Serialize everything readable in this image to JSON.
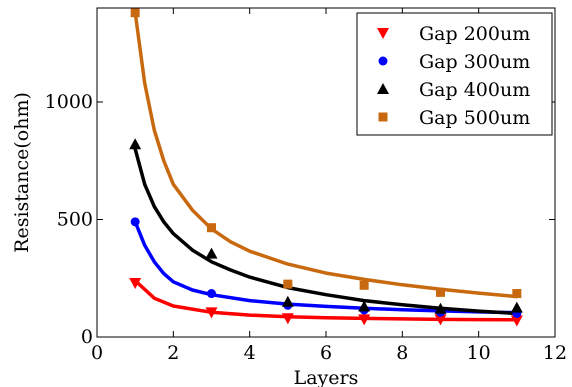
{
  "chart_data": {
    "type": "scatter",
    "title": "",
    "xlabel": "Layers",
    "ylabel": "Resistance(ohm)",
    "xlim": [
      0,
      12
    ],
    "ylim": [
      0,
      1400
    ],
    "xticks": [
      0,
      2,
      4,
      6,
      8,
      10,
      12
    ],
    "yticks": [
      0,
      500,
      1000
    ],
    "grid": false,
    "legend_position": "top-right",
    "fit_lines": true,
    "series": [
      {
        "name": "Gap 200um",
        "marker": "triangle-down",
        "color": "#ff0000",
        "x": [
          1,
          3,
          5,
          7,
          9,
          11
        ],
        "y": [
          230,
          105,
          80,
          75,
          75,
          70
        ],
        "fit": [
          {
            "x": 1,
            "y": 240
          },
          {
            "x": 1.5,
            "y": 165
          },
          {
            "x": 2,
            "y": 132
          },
          {
            "x": 3,
            "y": 105
          },
          {
            "x": 4,
            "y": 93
          },
          {
            "x": 5,
            "y": 86
          },
          {
            "x": 6,
            "y": 82
          },
          {
            "x": 7,
            "y": 79
          },
          {
            "x": 8,
            "y": 77
          },
          {
            "x": 9,
            "y": 75
          },
          {
            "x": 10,
            "y": 74
          },
          {
            "x": 11,
            "y": 73
          }
        ]
      },
      {
        "name": "Gap 300um",
        "marker": "circle",
        "color": "#0000ff",
        "x": [
          1,
          3,
          5,
          7,
          9,
          11
        ],
        "y": [
          490,
          185,
          135,
          115,
          105,
          100
        ],
        "fit": [
          {
            "x": 1,
            "y": 490
          },
          {
            "x": 1.25,
            "y": 390
          },
          {
            "x": 1.5,
            "y": 320
          },
          {
            "x": 1.75,
            "y": 270
          },
          {
            "x": 2,
            "y": 235
          },
          {
            "x": 2.5,
            "y": 200
          },
          {
            "x": 3,
            "y": 180
          },
          {
            "x": 4,
            "y": 155
          },
          {
            "x": 5,
            "y": 140
          },
          {
            "x": 6,
            "y": 130
          },
          {
            "x": 7,
            "y": 122
          },
          {
            "x": 8,
            "y": 116
          },
          {
            "x": 9,
            "y": 111
          },
          {
            "x": 10,
            "y": 107
          },
          {
            "x": 11,
            "y": 104
          }
        ]
      },
      {
        "name": "Gap 400um",
        "marker": "triangle-up",
        "color": "#000000",
        "x": [
          1,
          3,
          5,
          7,
          9,
          11
        ],
        "y": [
          820,
          355,
          150,
          130,
          120,
          125
        ],
        "fit": [
          {
            "x": 1,
            "y": 800
          },
          {
            "x": 1.25,
            "y": 650
          },
          {
            "x": 1.5,
            "y": 555
          },
          {
            "x": 1.75,
            "y": 490
          },
          {
            "x": 2,
            "y": 440
          },
          {
            "x": 2.5,
            "y": 370
          },
          {
            "x": 3,
            "y": 320
          },
          {
            "x": 3.5,
            "y": 285
          },
          {
            "x": 4,
            "y": 255
          },
          {
            "x": 5,
            "y": 210
          },
          {
            "x": 6,
            "y": 180
          },
          {
            "x": 7,
            "y": 155
          },
          {
            "x": 8,
            "y": 137
          },
          {
            "x": 9,
            "y": 122
          },
          {
            "x": 10,
            "y": 110
          },
          {
            "x": 11,
            "y": 100
          }
        ]
      },
      {
        "name": "Gap 500um",
        "marker": "square",
        "color": "#c8690f",
        "x": [
          1,
          3,
          5,
          7,
          9,
          11
        ],
        "y": [
          1380,
          465,
          225,
          220,
          190,
          185
        ],
        "fit": [
          {
            "x": 1,
            "y": 1380
          },
          {
            "x": 1.25,
            "y": 1080
          },
          {
            "x": 1.5,
            "y": 880
          },
          {
            "x": 1.75,
            "y": 750
          },
          {
            "x": 2,
            "y": 650
          },
          {
            "x": 2.5,
            "y": 540
          },
          {
            "x": 3,
            "y": 460
          },
          {
            "x": 3.5,
            "y": 405
          },
          {
            "x": 4,
            "y": 365
          },
          {
            "x": 5,
            "y": 310
          },
          {
            "x": 6,
            "y": 272
          },
          {
            "x": 7,
            "y": 245
          },
          {
            "x": 8,
            "y": 222
          },
          {
            "x": 9,
            "y": 203
          },
          {
            "x": 10,
            "y": 187
          },
          {
            "x": 11,
            "y": 172
          }
        ]
      }
    ]
  }
}
